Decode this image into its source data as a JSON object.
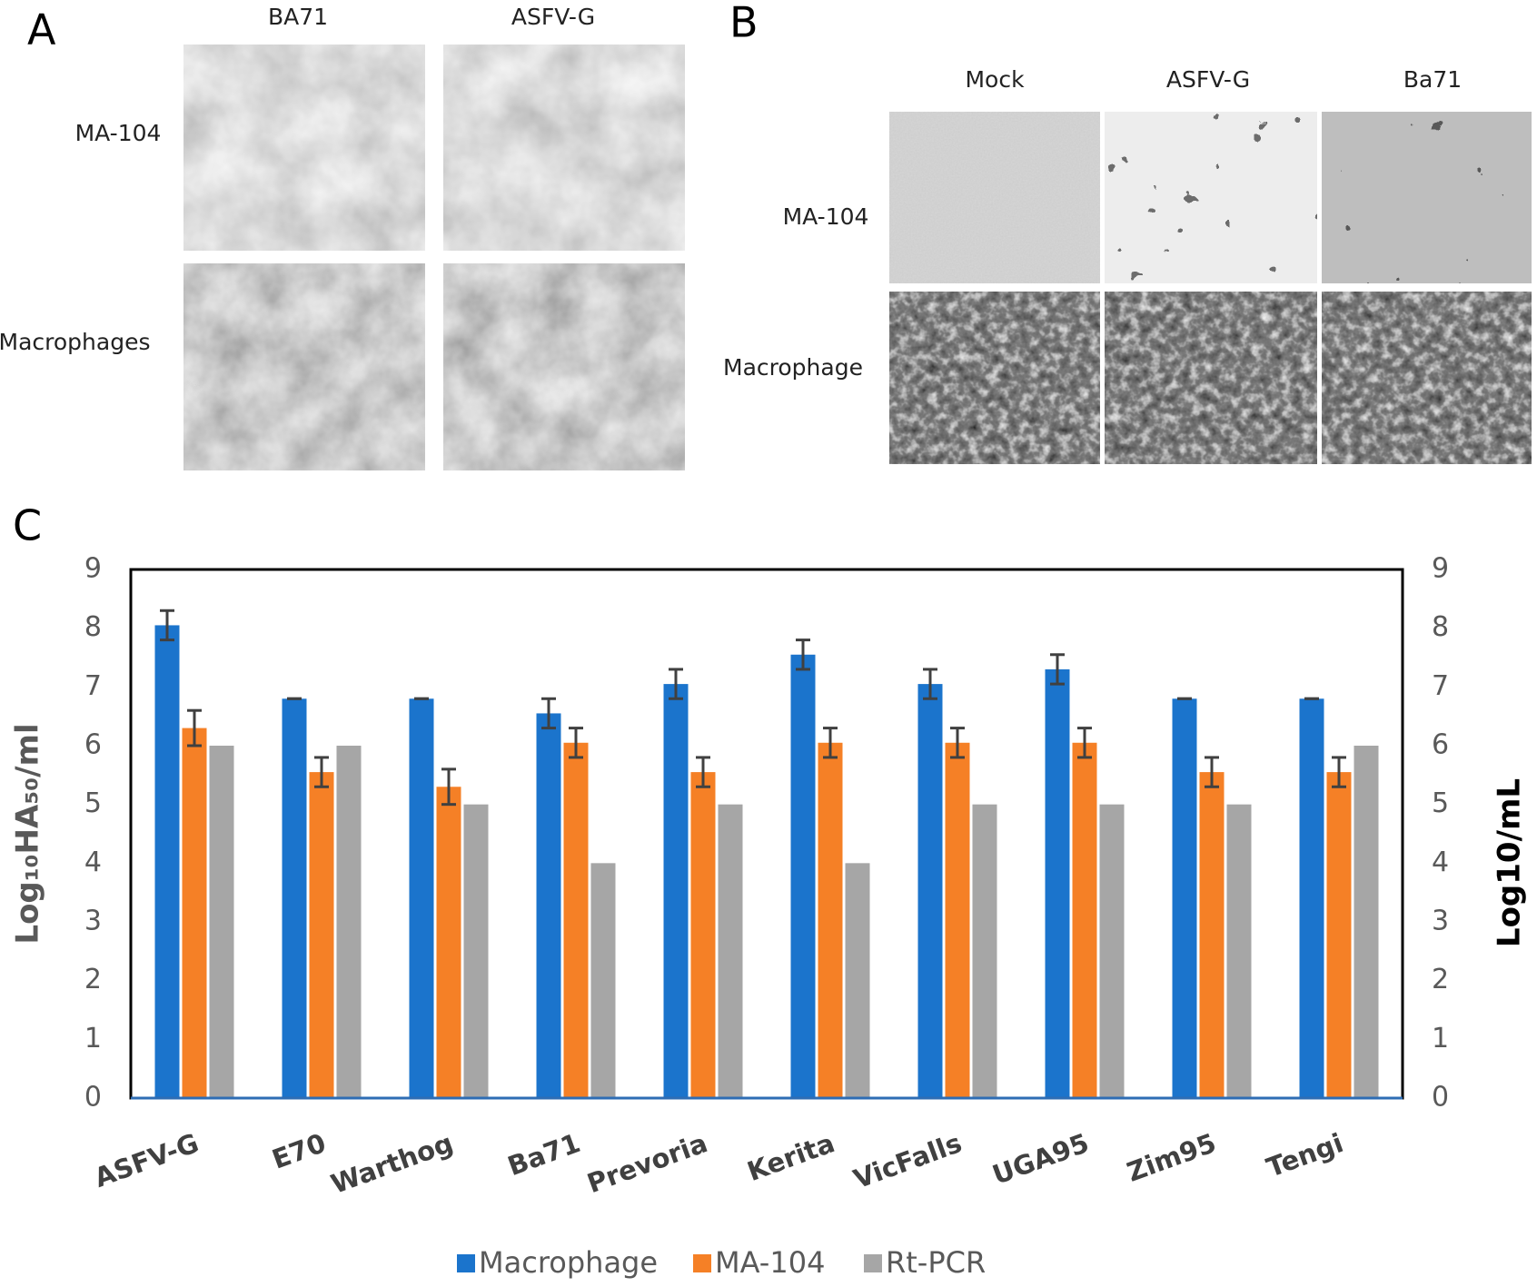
{
  "panel_a": {
    "label": "A",
    "columns": [
      "BA71",
      "ASFV-G"
    ],
    "rows": [
      "MA-104",
      "Macrophages"
    ]
  },
  "panel_b": {
    "label": "B",
    "columns": [
      "Mock",
      "ASFV-G",
      "Ba71"
    ],
    "rows": [
      "MA-104",
      "Macrophage"
    ]
  },
  "chart_data": {
    "type": "bar",
    "panel_label": "C",
    "ylabel": "Log₁₀HA₅₀/ml",
    "y2label": "Log10/mL",
    "categories": [
      "ASFV-G",
      "E70",
      "Warthog",
      "Ba71",
      "Prevoria",
      "Kerita",
      "VicFalls",
      "UGA95",
      "Zim95",
      "Tengi"
    ],
    "series": [
      {
        "name": "Macrophage",
        "color": "#1b74cc",
        "values": [
          8.05,
          6.8,
          6.8,
          6.55,
          7.05,
          7.55,
          7.05,
          7.3,
          6.8,
          6.8
        ],
        "errors": [
          0.25,
          0,
          0,
          0.25,
          0.25,
          0.25,
          0.25,
          0.25,
          0,
          0
        ]
      },
      {
        "name": "MA-104",
        "color": "#f58026",
        "values": [
          6.3,
          5.55,
          5.3,
          6.05,
          5.55,
          6.05,
          6.05,
          6.05,
          5.55,
          5.55
        ],
        "errors": [
          0.3,
          0.25,
          0.3,
          0.25,
          0.25,
          0.25,
          0.25,
          0.25,
          0.25,
          0.25
        ]
      },
      {
        "name": "Rt-PCR",
        "color": "#a6a6a6",
        "axis": "y2",
        "values": [
          6,
          6,
          5,
          4,
          5,
          4,
          5,
          5,
          5,
          6
        ]
      }
    ],
    "ylim": [
      0,
      9
    ],
    "yticks": [
      0,
      1,
      2,
      3,
      4,
      5,
      6,
      7,
      8,
      9
    ],
    "y2lim": [
      0,
      9
    ],
    "y2ticks": [
      0,
      1,
      2,
      3,
      4,
      5,
      6,
      7,
      8,
      9
    ],
    "grid": false,
    "legend": "bottom"
  }
}
